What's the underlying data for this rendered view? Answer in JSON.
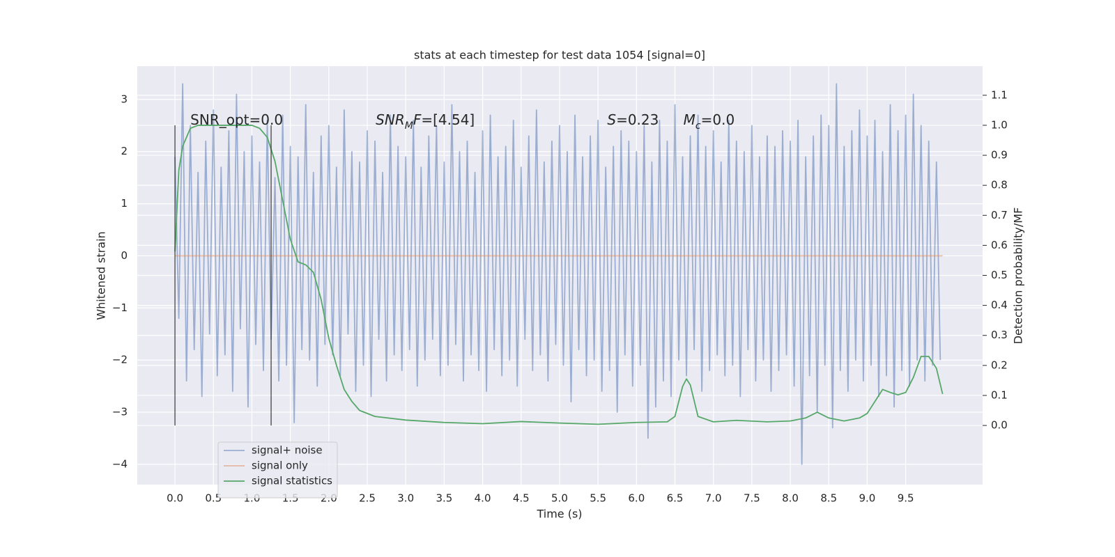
{
  "chart_data": {
    "type": "line",
    "title": "stats at each timestep for test data 1054 [signal=0]",
    "xlabel": "Time (s)",
    "ylabel": "Whitened strain",
    "y2label": "Detection probability/MF",
    "xlim": [
      -0.49,
      10.5
    ],
    "ylim": [
      -4.39,
      3.64
    ],
    "y2lim": [
      -0.197,
      1.197
    ],
    "xticks": [
      {
        "value": 0,
        "label": "0.0"
      },
      0.5,
      {
        "value": 1,
        "label": "1.0"
      },
      1.5,
      {
        "value": 2,
        "label": "2.0"
      },
      2.5,
      {
        "value": 3,
        "label": "3.0"
      },
      3.5,
      {
        "value": 4,
        "label": "4.0"
      },
      4.5,
      {
        "value": 5,
        "label": "5.0"
      },
      5.5,
      {
        "value": 6,
        "label": "6.0"
      },
      6.5,
      {
        "value": 7,
        "label": "7.0"
      },
      7.5,
      {
        "value": 8,
        "label": "8.0"
      },
      8.5,
      {
        "value": 9,
        "label": "9.0"
      },
      9.5
    ],
    "yticks": [
      {
        "value": -4,
        "label": "−4"
      },
      {
        "value": -3,
        "label": "−3"
      },
      {
        "value": -2,
        "label": "−2"
      },
      {
        "value": -1,
        "label": "−1"
      },
      0,
      1,
      2,
      3
    ],
    "y2ticks": [
      {
        "value": 0,
        "label": "0.0"
      },
      0.1,
      0.2,
      0.3,
      0.4,
      0.5,
      0.6,
      0.7,
      0.8,
      0.9,
      {
        "value": 1,
        "label": "1.0"
      },
      1.1
    ],
    "grid": true,
    "legend": "lower left",
    "series": [
      {
        "name": "signal+ noise",
        "color": "#4c72b0",
        "opacity": 0.5,
        "x": [
          0,
          0.05,
          0.1,
          0.15,
          0.2,
          0.25,
          0.3,
          0.35,
          0.4,
          0.45,
          0.5,
          0.55,
          0.6,
          0.65,
          0.7,
          0.75,
          0.8,
          0.85,
          0.9,
          0.95,
          1,
          1.05,
          1.1,
          1.15,
          1.2,
          1.25,
          1.3,
          1.35,
          1.4,
          1.45,
          1.5,
          1.55,
          1.6,
          1.65,
          1.7,
          1.75,
          1.8,
          1.85,
          1.9,
          1.95,
          2,
          2.05,
          2.1,
          2.15,
          2.2,
          2.25,
          2.3,
          2.35,
          2.4,
          2.45,
          2.5,
          2.55,
          2.6,
          2.65,
          2.7,
          2.75,
          2.8,
          2.85,
          2.9,
          2.95,
          3,
          3.05,
          3.1,
          3.15,
          3.2,
          3.25,
          3.3,
          3.35,
          3.4,
          3.45,
          3.5,
          3.55,
          3.6,
          3.65,
          3.7,
          3.75,
          3.8,
          3.85,
          3.9,
          3.95,
          4,
          4.05,
          4.1,
          4.15,
          4.2,
          4.25,
          4.3,
          4.35,
          4.4,
          4.45,
          4.5,
          4.55,
          4.6,
          4.65,
          4.7,
          4.75,
          4.8,
          4.85,
          4.9,
          4.95,
          5,
          5.05,
          5.1,
          5.15,
          5.2,
          5.25,
          5.3,
          5.35,
          5.4,
          5.45,
          5.5,
          5.55,
          5.6,
          5.65,
          5.7,
          5.75,
          5.8,
          5.85,
          5.9,
          5.95,
          6,
          6.05,
          6.1,
          6.15,
          6.2,
          6.25,
          6.3,
          6.35,
          6.4,
          6.45,
          6.5,
          6.55,
          6.6,
          6.65,
          6.7,
          6.75,
          6.8,
          6.85,
          6.9,
          6.95,
          7,
          7.05,
          7.1,
          7.15,
          7.2,
          7.25,
          7.3,
          7.35,
          7.4,
          7.45,
          7.5,
          7.55,
          7.6,
          7.65,
          7.7,
          7.75,
          7.8,
          7.85,
          7.9,
          7.95,
          8,
          8.05,
          8.1,
          8.15,
          8.2,
          8.25,
          8.3,
          8.35,
          8.4,
          8.45,
          8.5,
          8.55,
          8.6,
          8.65,
          8.7,
          8.75,
          8.8,
          8.85,
          8.9,
          8.95,
          9,
          9.05,
          9.1,
          9.15,
          9.2,
          9.25,
          9.3,
          9.35,
          9.4,
          9.45,
          9.5,
          9.55,
          9.6,
          9.65,
          9.7,
          9.75,
          9.8,
          9.85,
          9.9,
          9.95
        ],
        "values": [
          1.9,
          -1.2,
          3.3,
          -2.4,
          2.5,
          -1.8,
          1.6,
          -2.7,
          2.2,
          -1.5,
          2.8,
          -2.3,
          1.7,
          -1.9,
          2.4,
          -2.6,
          3.1,
          -1.4,
          2.0,
          -2.9,
          2.3,
          -1.7,
          1.8,
          -2.2,
          2.6,
          -1.6,
          1.5,
          -2.4,
          2.7,
          -2.1,
          2.1,
          -3.2,
          1.9,
          -1.8,
          2.9,
          -2.0,
          1.6,
          -2.5,
          2.3,
          -1.7,
          2.5,
          -1.9,
          1.7,
          -2.3,
          2.8,
          -1.5,
          2.0,
          -2.6,
          1.8,
          -2.1,
          2.4,
          -2.7,
          2.2,
          -1.6,
          1.6,
          -2.4,
          2.7,
          -1.9,
          2.1,
          -2.2,
          1.9,
          -1.8,
          2.6,
          -2.5,
          1.7,
          -2.0,
          2.3,
          -1.6,
          2.5,
          -2.3,
          1.8,
          -2.1,
          2.9,
          -1.7,
          2.0,
          -2.4,
          2.2,
          -1.9,
          1.6,
          -2.2,
          2.4,
          -2.6,
          2.7,
          -1.8,
          1.9,
          -2.3,
          2.1,
          -2.0,
          2.6,
          -2.5,
          1.7,
          -1.6,
          2.3,
          -2.2,
          2.8,
          -1.9,
          1.8,
          -2.4,
          2.2,
          -1.7,
          2.5,
          -2.1,
          2.0,
          -2.8,
          2.7,
          -1.8,
          1.9,
          -2.3,
          2.3,
          -2.0,
          2.6,
          -2.6,
          1.7,
          -2.2,
          2.1,
          -3.0,
          2.4,
          -1.9,
          2.2,
          -2.5,
          2.0,
          -2.1,
          2.5,
          -3.5,
          1.8,
          -2.9,
          2.6,
          -2.4,
          2.2,
          -2.7,
          2.9,
          -2.0,
          1.9,
          -2.3,
          2.3,
          -1.8,
          2.7,
          -2.6,
          2.1,
          -2.2,
          2.4,
          -1.9,
          1.8,
          -2.3,
          2.6,
          -2.1,
          2.2,
          -2.7,
          2.0,
          -1.8,
          2.5,
          -2.4,
          1.9,
          -2.0,
          2.3,
          -2.6,
          2.1,
          -2.2,
          2.4,
          -1.9,
          2.2,
          -2.5,
          2.6,
          -4.0,
          1.9,
          -2.3,
          2.3,
          -3.0,
          2.7,
          -2.1,
          2.5,
          -3.3,
          3.3,
          -2.2,
          2.1,
          -2.6,
          2.4,
          -2.0,
          2.8,
          -2.4,
          2.3,
          -2.1,
          2.6,
          -2.7,
          2.0,
          -2.3,
          2.9,
          -2.9,
          2.4,
          -2.2,
          2.7,
          -2.5,
          3.1,
          -2.0,
          2.5,
          -2.4,
          2.2,
          -2.1,
          1.8,
          -2.0
        ]
      },
      {
        "name": "signal only",
        "color": "#dd8452",
        "opacity": 0.5,
        "x": [
          0,
          9.98
        ],
        "values": [
          0,
          0
        ]
      },
      {
        "name": "signal statistics",
        "color": "#55a868",
        "opacity": 1,
        "axis": "y2",
        "x": [
          0,
          0.05,
          0.1,
          0.2,
          0.3,
          0.5,
          0.8,
          1.0,
          1.1,
          1.2,
          1.3,
          1.4,
          1.5,
          1.6,
          1.7,
          1.8,
          1.9,
          2.0,
          2.1,
          2.2,
          2.3,
          2.4,
          2.6,
          3.0,
          3.5,
          4.0,
          4.5,
          5.0,
          5.5,
          6.0,
          6.4,
          6.5,
          6.6,
          6.65,
          6.7,
          6.8,
          7.0,
          7.3,
          7.7,
          8.0,
          8.2,
          8.35,
          8.5,
          8.7,
          8.9,
          9.0,
          9.1,
          9.2,
          9.3,
          9.4,
          9.5,
          9.6,
          9.7,
          9.8,
          9.9,
          9.98
        ],
        "values": [
          0.58,
          0.85,
          0.93,
          0.99,
          1.0,
          1.0,
          1.0,
          1.0,
          0.99,
          0.96,
          0.88,
          0.75,
          0.62,
          0.545,
          0.535,
          0.51,
          0.42,
          0.29,
          0.2,
          0.12,
          0.08,
          0.05,
          0.03,
          0.018,
          0.01,
          0.006,
          0.013,
          0.008,
          0.004,
          0.01,
          0.012,
          0.03,
          0.13,
          0.155,
          0.135,
          0.03,
          0.012,
          0.017,
          0.012,
          0.015,
          0.025,
          0.044,
          0.025,
          0.015,
          0.025,
          0.04,
          0.08,
          0.12,
          0.11,
          0.102,
          0.11,
          0.16,
          0.23,
          0.23,
          0.19,
          0.105
        ]
      }
    ],
    "markers": {
      "x": [
        0,
        1.25
      ],
      "y2": [
        0,
        1
      ]
    },
    "annotations": [
      {
        "x": 0.2,
        "y": 2.6,
        "parts": [
          {
            "text": "SNR_opt=0.0"
          }
        ]
      },
      {
        "x": 2.61,
        "y": 2.6,
        "parts": [
          {
            "text": "SNR",
            "italic": true
          },
          {
            "text": "M",
            "italic": true,
            "sub": true
          },
          {
            "text": "F",
            "italic": true
          },
          {
            "text": "=[4.54]"
          }
        ]
      },
      {
        "x": 5.62,
        "y": 2.6,
        "parts": [
          {
            "text": "S",
            "italic": true
          },
          {
            "text": "=0.23"
          }
        ]
      },
      {
        "x": 6.61,
        "y": 2.6,
        "parts": [
          {
            "text": "M",
            "italic": true
          },
          {
            "text": "c",
            "italic": true,
            "sub": true
          },
          {
            "text": "=0.0"
          }
        ]
      }
    ]
  }
}
